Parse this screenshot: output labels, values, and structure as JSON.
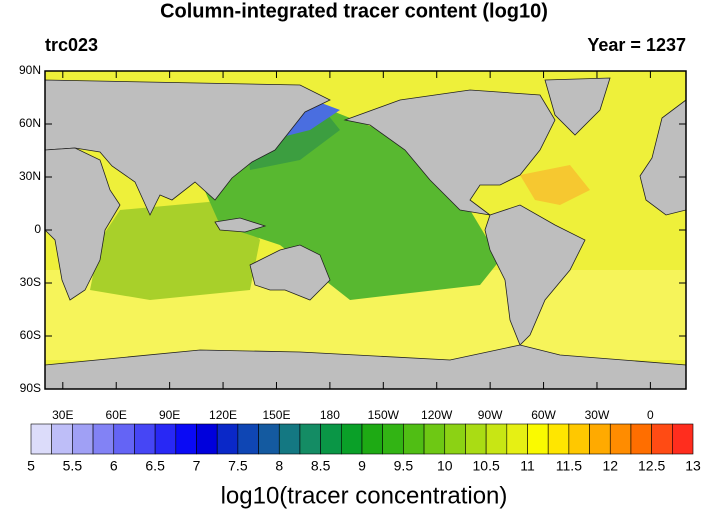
{
  "title": "Column-integrated tracer content (log10)",
  "left_label": "trc023",
  "right_label": "Year = 1237",
  "lat_labels": [
    "90N",
    "60N",
    "30N",
    "0",
    "30S",
    "60S",
    "90S"
  ],
  "lon_labels": [
    "30E",
    "60E",
    "90E",
    "120E",
    "150E",
    "180",
    "150W",
    "120W",
    "90W",
    "60W",
    "30W",
    "0"
  ],
  "colorbar": {
    "title": "log10(tracer concentration)",
    "labels": [
      5,
      5.5,
      6,
      6.5,
      7,
      7.5,
      8,
      8.5,
      9,
      9.5,
      10,
      10.5,
      11,
      11.5,
      12,
      12.5,
      13
    ],
    "colors": [
      "#dcdcfa",
      "#bebef8",
      "#a0a0f5",
      "#8282f5",
      "#6464f5",
      "#4646f5",
      "#2828f5",
      "#0a0af5",
      "#0000dc",
      "#0a28c8",
      "#0f46b4",
      "#145aa0",
      "#147882",
      "#148c64",
      "#0a9646",
      "#0aa028",
      "#1eaa14",
      "#32b414",
      "#50be14",
      "#6ec814",
      "#8cd214",
      "#aadc14",
      "#c8e614",
      "#e6f014",
      "#fafa00",
      "#ffe600",
      "#ffc800",
      "#ffaa00",
      "#ff8c00",
      "#ff6e00",
      "#ff4b14",
      "#ff2d1e"
    ]
  }
}
